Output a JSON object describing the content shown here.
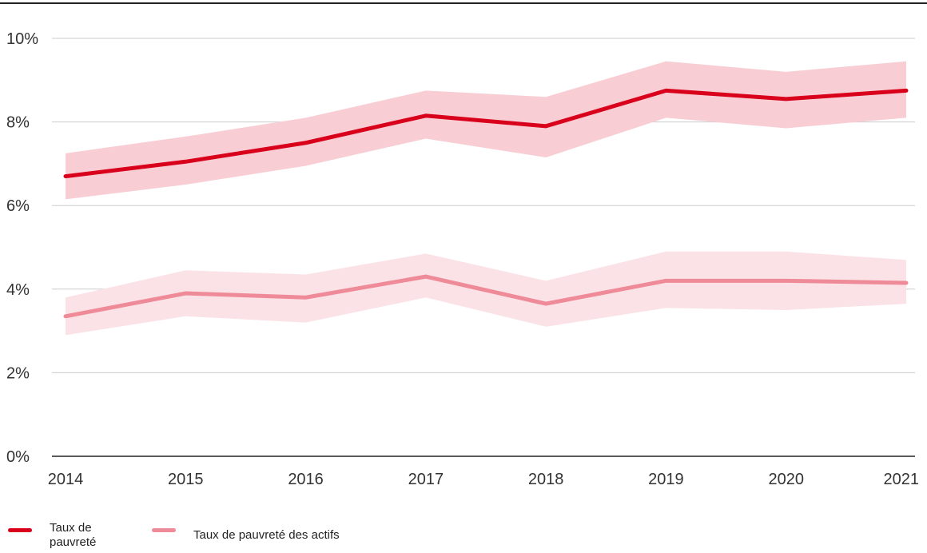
{
  "chart_data": {
    "type": "line",
    "title": "",
    "xlabel": "",
    "ylabel": "",
    "x": [
      2014,
      2015,
      2016,
      2017,
      2018,
      2019,
      2020,
      2021
    ],
    "x_tick_labels": [
      "2014",
      "2015",
      "2016",
      "2017",
      "2018",
      "2019",
      "2020",
      "2021"
    ],
    "ylim": [
      0,
      10
    ],
    "y_ticks": [
      0,
      2,
      4,
      6,
      8,
      10
    ],
    "y_tick_labels": [
      "0%",
      "2%",
      "4%",
      "6%",
      "8%",
      "10%"
    ],
    "grid": "horizontal",
    "legend_position": "bottom-left",
    "series": [
      {
        "name": "Taux de pauvreté",
        "color": "#d9001b",
        "band_color": "#f8cdd4",
        "values": [
          6.7,
          7.05,
          7.5,
          8.15,
          7.9,
          8.75,
          8.55,
          8.75
        ],
        "lower": [
          6.15,
          6.5,
          6.95,
          7.6,
          7.15,
          8.1,
          7.85,
          8.1
        ],
        "upper": [
          7.25,
          7.65,
          8.1,
          8.75,
          8.6,
          9.45,
          9.2,
          9.45
        ]
      },
      {
        "name": "Taux de pauvreté des actifs",
        "color": "#ef8a98",
        "band_color": "#fbe2e6",
        "values": [
          3.35,
          3.9,
          3.8,
          4.3,
          3.65,
          4.2,
          4.2,
          4.15
        ],
        "lower": [
          2.9,
          3.35,
          3.2,
          3.8,
          3.1,
          3.55,
          3.5,
          3.65
        ],
        "upper": [
          3.8,
          4.45,
          4.35,
          4.85,
          4.2,
          4.9,
          4.9,
          4.7
        ]
      }
    ]
  },
  "legend": {
    "items": [
      {
        "label": "Taux de\npauvreté",
        "color": "#d9001b"
      },
      {
        "label": "Taux de pauvreté des actifs",
        "color": "#ef8a98"
      }
    ]
  }
}
